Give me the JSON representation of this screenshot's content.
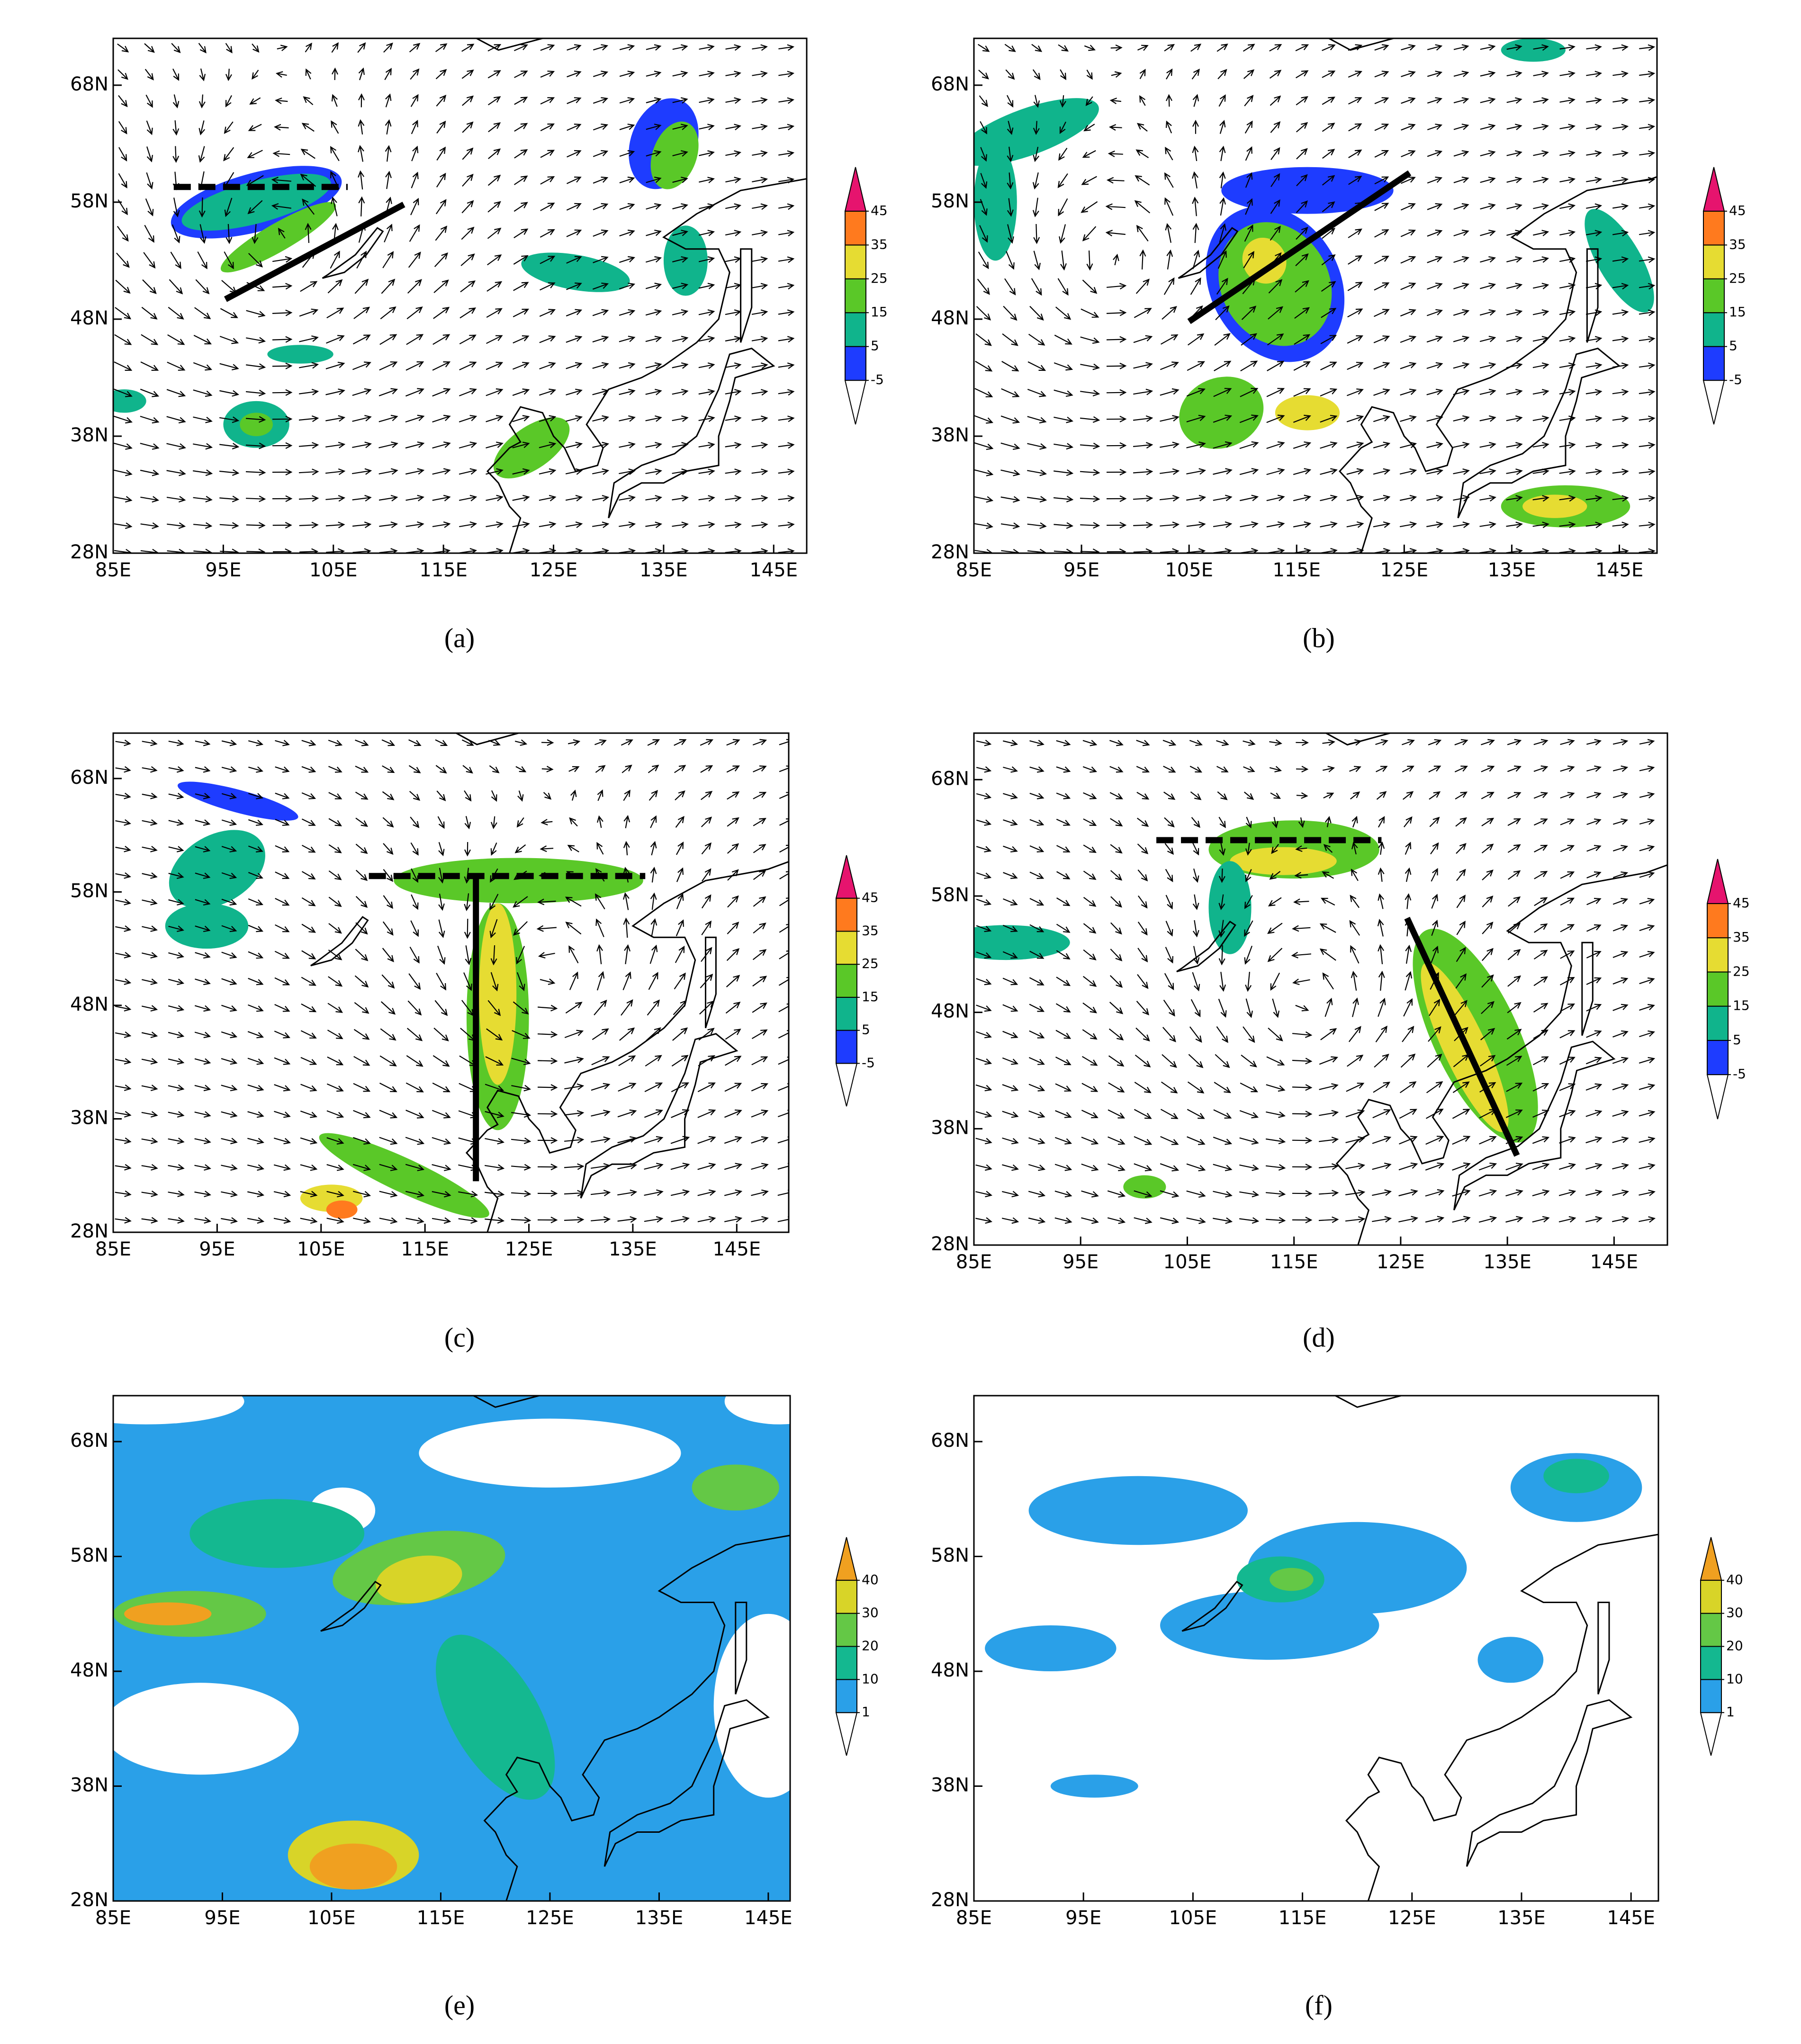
{
  "panels": [
    {
      "label": "(a)",
      "xlim": [
        85,
        148
      ],
      "ylim": [
        28,
        72
      ],
      "xticks": [
        {
          "value": 85,
          "label": "85E"
        },
        {
          "value": 95,
          "label": "95E"
        },
        {
          "value": 105,
          "label": "105E"
        },
        {
          "value": 115,
          "label": "115E"
        },
        {
          "value": 125,
          "label": "125E"
        },
        {
          "value": 135,
          "label": "135E"
        },
        {
          "value": 145,
          "label": "145E"
        }
      ],
      "yticks": [
        {
          "value": 28,
          "label": "28N"
        },
        {
          "value": 38,
          "label": "38N"
        },
        {
          "value": 48,
          "label": "48N"
        },
        {
          "value": 58,
          "label": "58N"
        },
        {
          "value": 68,
          "label": "68N"
        }
      ],
      "colorbar": {
        "levels": [
          -5,
          5,
          15,
          25,
          35,
          45
        ],
        "colors": [
          "#ffffff",
          "#1e3cff",
          "#10b48c",
          "#5ac828",
          "#e6dc32",
          "#ff7a1e",
          "#e6146e"
        ]
      },
      "lines": [
        {
          "style": "dashed",
          "lon": [
            90.5,
            106.3
          ],
          "lat": [
            59.3,
            59.3
          ]
        },
        {
          "style": "solid",
          "lon": [
            95.2,
            111.4
          ],
          "lat": [
            49.7,
            57.8
          ]
        }
      ]
    },
    {
      "label": "(b)",
      "xlim": [
        85,
        148.5
      ],
      "ylim": [
        28,
        72
      ],
      "xticks": [
        {
          "value": 85,
          "label": "85E"
        },
        {
          "value": 95,
          "label": "95E"
        },
        {
          "value": 105,
          "label": "105E"
        },
        {
          "value": 115,
          "label": "115E"
        },
        {
          "value": 125,
          "label": "125E"
        },
        {
          "value": 135,
          "label": "135E"
        },
        {
          "value": 145,
          "label": "145E"
        }
      ],
      "yticks": [
        {
          "value": 28,
          "label": "28N"
        },
        {
          "value": 38,
          "label": "38N"
        },
        {
          "value": 48,
          "label": "48N"
        },
        {
          "value": 58,
          "label": "58N"
        },
        {
          "value": 68,
          "label": "68N"
        }
      ],
      "colorbar": {
        "levels": [
          -5,
          5,
          15,
          25,
          35,
          45
        ],
        "colors": [
          "#ffffff",
          "#1e3cff",
          "#10b48c",
          "#5ac828",
          "#e6dc32",
          "#ff7a1e",
          "#e6146e"
        ]
      },
      "lines": [
        {
          "style": "solid",
          "lon": [
            105,
            125.5
          ],
          "lat": [
            47.8,
            60.5
          ]
        }
      ]
    },
    {
      "label": "(c)",
      "xlim": [
        85,
        150
      ],
      "ylim": [
        28,
        72
      ],
      "xticks": [
        {
          "value": 85,
          "label": "85E"
        },
        {
          "value": 95,
          "label": "95E"
        },
        {
          "value": 105,
          "label": "105E"
        },
        {
          "value": 115,
          "label": "115E"
        },
        {
          "value": 125,
          "label": "125E"
        },
        {
          "value": 135,
          "label": "135E"
        },
        {
          "value": 145,
          "label": "145E"
        }
      ],
      "yticks": [
        {
          "value": 28,
          "label": "28N"
        },
        {
          "value": 38,
          "label": "38N"
        },
        {
          "value": 48,
          "label": "48N"
        },
        {
          "value": 58,
          "label": "58N"
        },
        {
          "value": 68,
          "label": "68N"
        }
      ],
      "colorbar": {
        "levels": [
          -5,
          5,
          15,
          25,
          35,
          45
        ],
        "colors": [
          "#ffffff",
          "#1e3cff",
          "#10b48c",
          "#5ac828",
          "#e6dc32",
          "#ff7a1e",
          "#e6146e"
        ]
      },
      "lines": [
        {
          "style": "dashed",
          "lon": [
            109.6,
            136.2
          ],
          "lat": [
            59.4,
            59.4
          ]
        },
        {
          "style": "solid",
          "lon": [
            119.9,
            119.9
          ],
          "lat": [
            59.4,
            32.5
          ]
        }
      ]
    },
    {
      "label": "(d)",
      "xlim": [
        85,
        150
      ],
      "ylim": [
        28,
        72
      ],
      "xticks": [
        {
          "value": 85,
          "label": "85E"
        },
        {
          "value": 95,
          "label": "95E"
        },
        {
          "value": 105,
          "label": "105E"
        },
        {
          "value": 115,
          "label": "115E"
        },
        {
          "value": 125,
          "label": "125E"
        },
        {
          "value": 135,
          "label": "135E"
        },
        {
          "value": 145,
          "label": "145E"
        }
      ],
      "yticks": [
        {
          "value": 28,
          "label": "28N"
        },
        {
          "value": 38,
          "label": "38N"
        },
        {
          "value": 48,
          "label": "48N"
        },
        {
          "value": 58,
          "label": "58N"
        },
        {
          "value": 68,
          "label": "68N"
        }
      ],
      "colorbar": {
        "levels": [
          -5,
          5,
          15,
          25,
          35,
          45
        ],
        "colors": [
          "#ffffff",
          "#1e3cff",
          "#10b48c",
          "#5ac828",
          "#e6dc32",
          "#ff7a1e",
          "#e6146e"
        ]
      },
      "lines": [
        {
          "style": "dashed",
          "lon": [
            102.1,
            123.2
          ],
          "lat": [
            62.8,
            62.8
          ]
        },
        {
          "style": "solid",
          "lon": [
            125.6,
            135.9
          ],
          "lat": [
            56.1,
            35.7
          ]
        }
      ]
    },
    {
      "label": "(e)",
      "xlim": [
        85,
        147
      ],
      "ylim": [
        28,
        72
      ],
      "xticks": [
        {
          "value": 85,
          "label": "85E"
        },
        {
          "value": 95,
          "label": "95E"
        },
        {
          "value": 105,
          "label": "105E"
        },
        {
          "value": 115,
          "label": "115E"
        },
        {
          "value": 125,
          "label": "125E"
        },
        {
          "value": 135,
          "label": "135E"
        },
        {
          "value": 145,
          "label": "145E"
        }
      ],
      "yticks": [
        {
          "value": 28,
          "label": "28N"
        },
        {
          "value": 38,
          "label": "38N"
        },
        {
          "value": 48,
          "label": "48N"
        },
        {
          "value": 58,
          "label": "58N"
        },
        {
          "value": 68,
          "label": "68N"
        }
      ],
      "colorbar": {
        "levels": [
          1,
          10,
          20,
          30,
          40
        ],
        "colors": [
          "#ffffff",
          "#2aa0e8",
          "#14b890",
          "#64c846",
          "#d8d428",
          "#f0a020"
        ]
      }
    },
    {
      "label": "(f)",
      "xlim": [
        85,
        147.5
      ],
      "ylim": [
        28,
        72
      ],
      "xticks": [
        {
          "value": 85,
          "label": "85E"
        },
        {
          "value": 95,
          "label": "95E"
        },
        {
          "value": 105,
          "label": "105E"
        },
        {
          "value": 115,
          "label": "115E"
        },
        {
          "value": 125,
          "label": "125E"
        },
        {
          "value": 135,
          "label": "135E"
        },
        {
          "value": 145,
          "label": "145E"
        }
      ],
      "yticks": [
        {
          "value": 28,
          "label": "28N"
        },
        {
          "value": 38,
          "label": "38N"
        },
        {
          "value": 48,
          "label": "48N"
        },
        {
          "value": 58,
          "label": "58N"
        },
        {
          "value": 68,
          "label": "68N"
        }
      ],
      "colorbar": {
        "levels": [
          1,
          10,
          20,
          30,
          40
        ],
        "colors": [
          "#ffffff",
          "#2aa0e8",
          "#14b890",
          "#64c846",
          "#d8d428",
          "#f0a020"
        ]
      }
    }
  ]
}
